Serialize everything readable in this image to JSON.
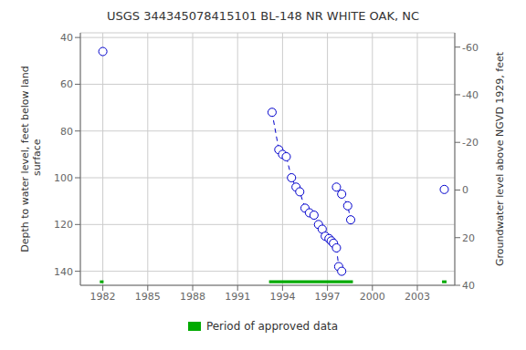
{
  "chart_data": {
    "type": "line",
    "title": "USGS 344345078415101 BL-148 NR WHITE OAK, NC",
    "ylabel": "Depth to water level, feet below land\n surface",
    "y2label": "Groundwater level above NGVD 1929, feet",
    "xlim": [
      1980.5,
      2005.5
    ],
    "xticks": [
      1982,
      1985,
      1988,
      1991,
      1994,
      1997,
      2000,
      2003
    ],
    "ylim": [
      146,
      38
    ],
    "yticks": [
      40,
      60,
      80,
      100,
      120,
      140
    ],
    "y2lim": [
      40,
      -66
    ],
    "y2ticks": [
      40,
      20,
      0,
      -20,
      -40,
      -60
    ],
    "grid": true,
    "legend": "bottom",
    "series": [
      {
        "x": [
          1982.0
        ],
        "values": [
          46
        ],
        "color": "#0000cc",
        "line_style": "none",
        "marker": "o"
      },
      {
        "x": [
          1993.3,
          1993.75,
          1994.0,
          1994.25,
          1994.6,
          1994.9,
          1995.15,
          1995.5,
          1995.8,
          1996.1,
          1996.4,
          1996.65,
          1996.85,
          1997.1,
          1997.25,
          1997.4,
          1997.6,
          1997.75,
          1997.95
        ],
        "values": [
          72,
          88,
          90,
          91,
          100,
          104,
          106,
          113,
          115,
          116,
          120,
          122,
          125,
          126,
          127,
          128,
          130,
          138,
          140
        ],
        "color": "#0000cc",
        "line_style": "dashed",
        "marker": "o"
      },
      {
        "x": [
          1997.6,
          1997.95,
          1998.35,
          1998.55
        ],
        "values": [
          104,
          107,
          112,
          118
        ],
        "color": "#0000cc",
        "line_style": "dashed",
        "marker": "o"
      },
      {
        "x": [
          2004.8
        ],
        "values": [
          105
        ],
        "color": "#0000cc",
        "line_style": "none",
        "marker": "o"
      }
    ],
    "approved_periods": [
      [
        1981.8,
        1982.05
      ],
      [
        1993.1,
        1998.7
      ],
      [
        2004.65,
        2004.95
      ]
    ],
    "approved_bar_y": 144.5,
    "approved_color": "#00aa00",
    "approved_label": "Period of approved data"
  }
}
